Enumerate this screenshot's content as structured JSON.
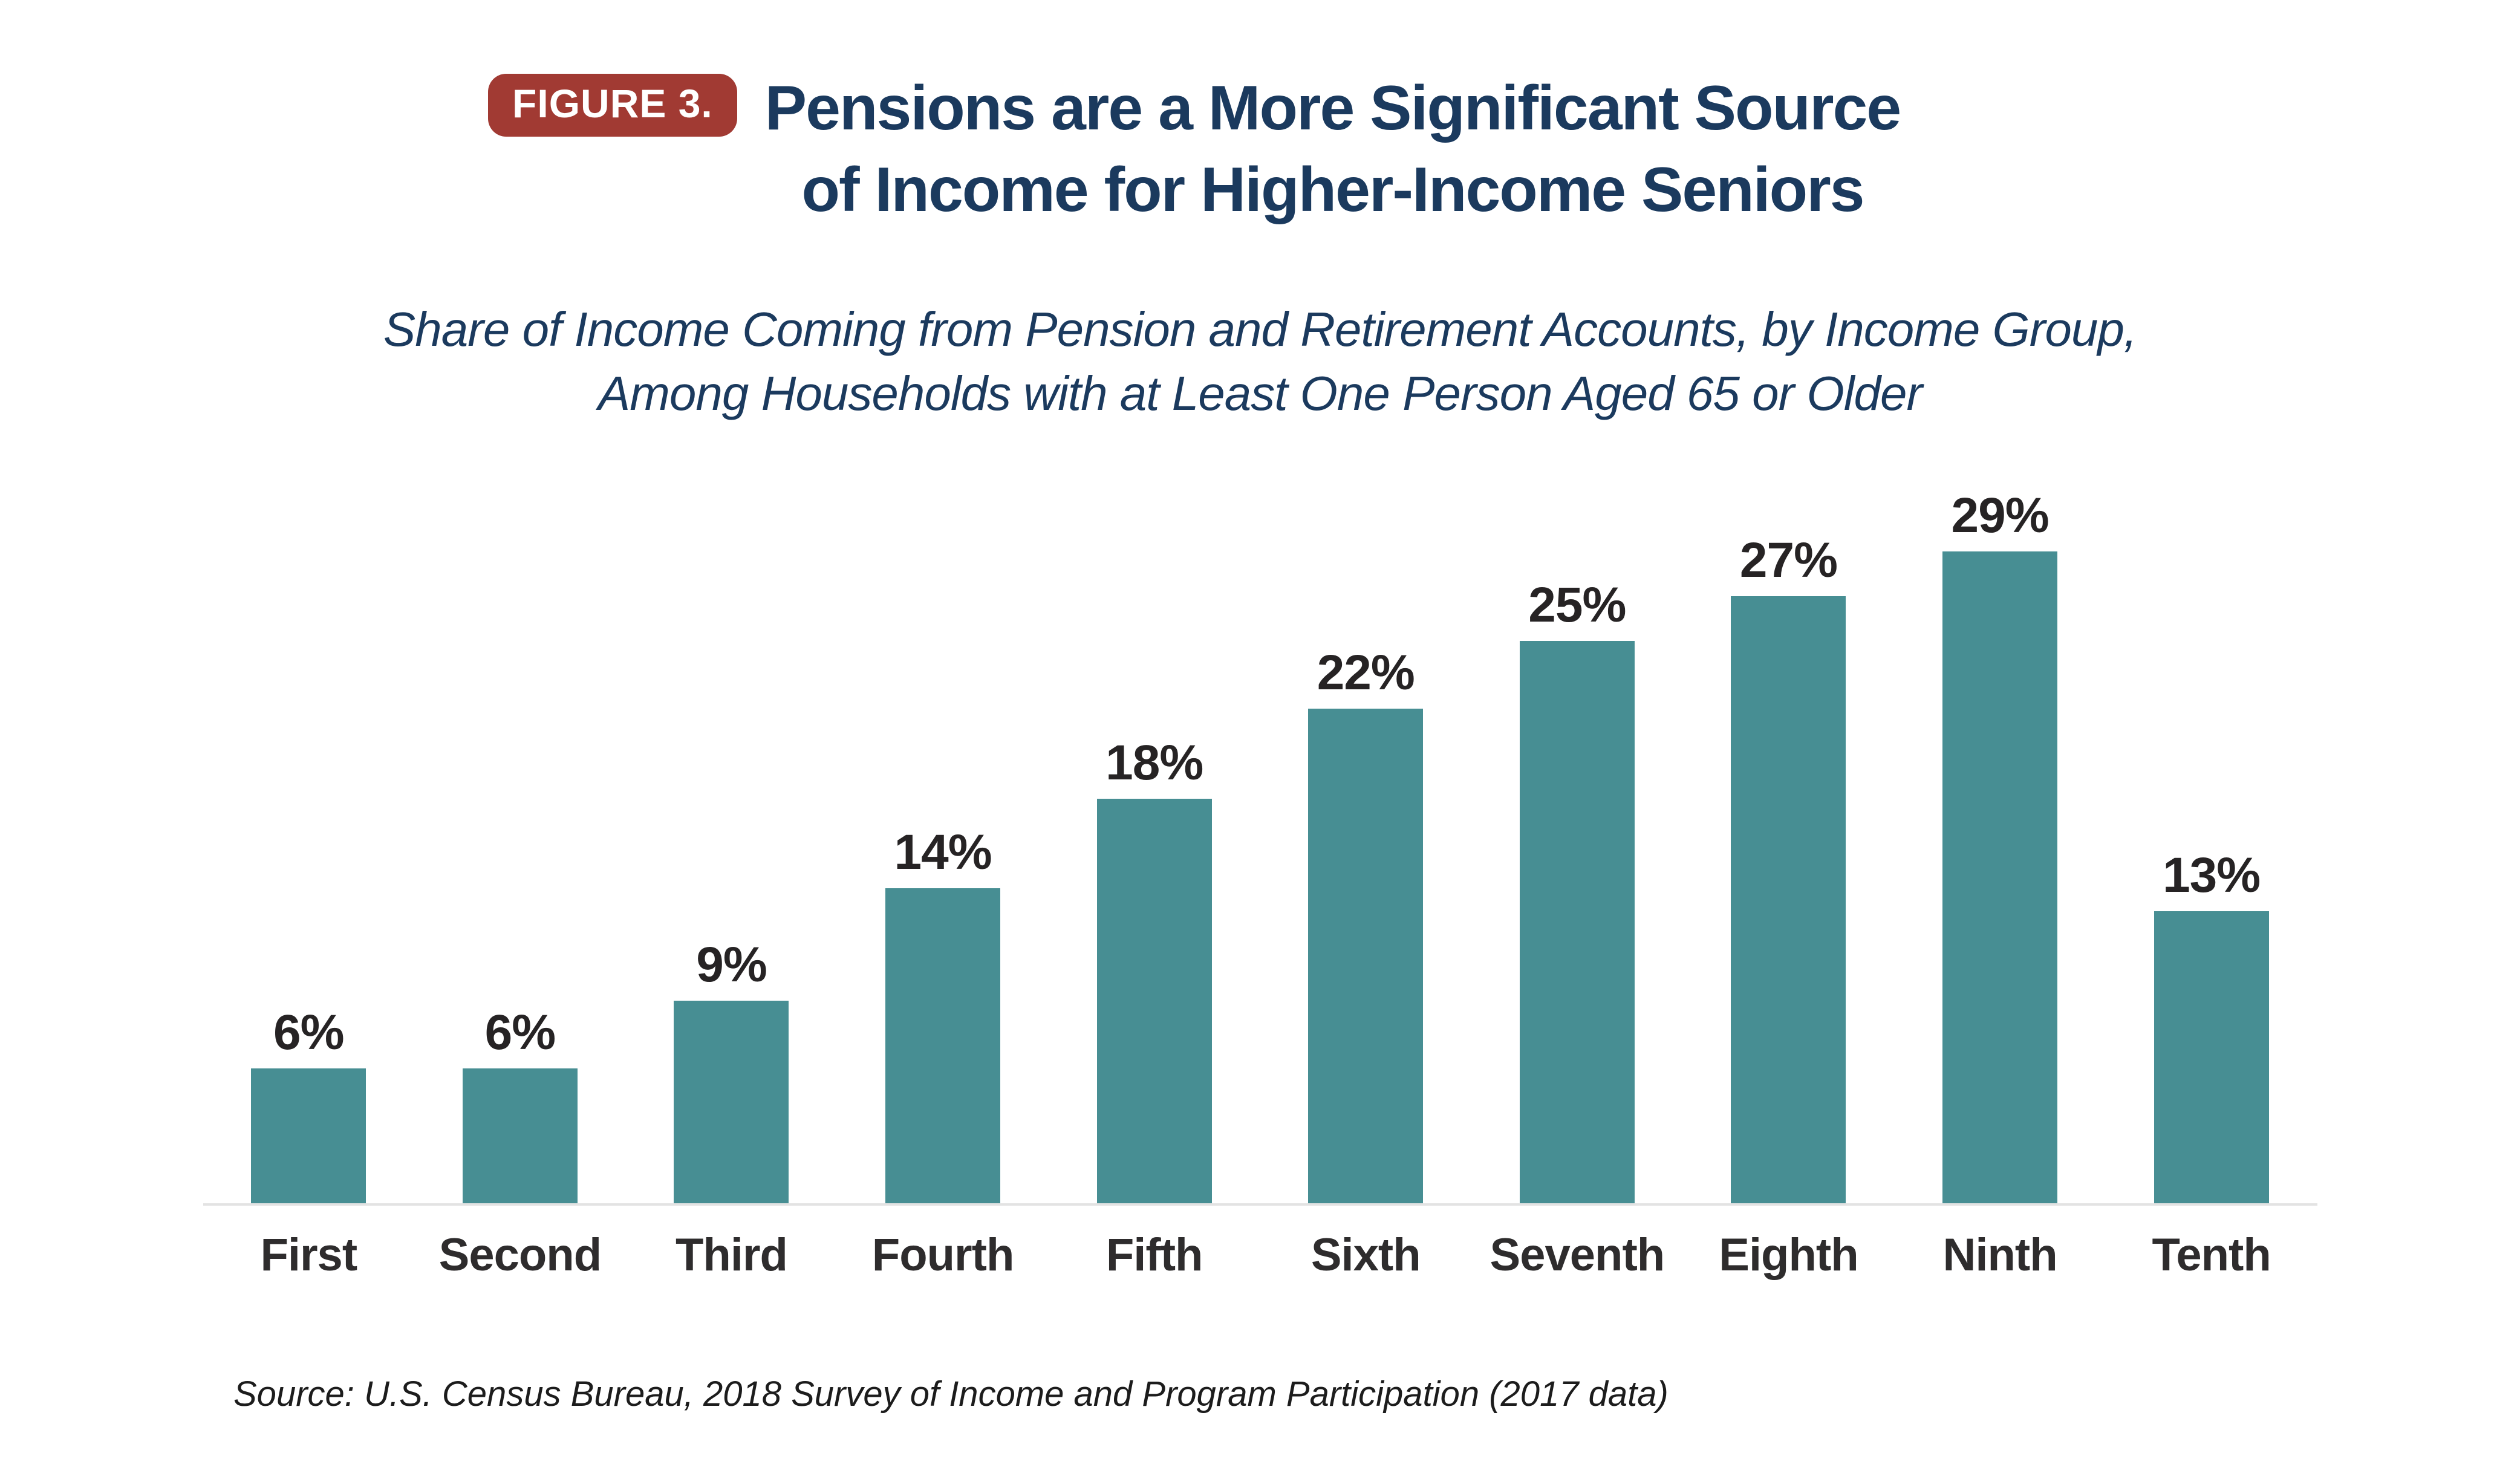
{
  "figure": {
    "badge": "FIGURE 3.",
    "title_line1": "Pensions are a More Significant Source",
    "title_line2": "of Income for Higher-Income Seniors",
    "subtitle_line1": "Share of Income Coming from Pension and Retirement Accounts, by Income Group,",
    "subtitle_line2": "Among Households with at Least One Person Aged 65 or Older",
    "source": "Source: U.S. Census Bureau, 2018 Survey of Income and Program Participation (2017 data)"
  },
  "colors": {
    "bar": "#478e93",
    "title_text": "#1b3a5e",
    "badge_background": "#a13a33",
    "badge_text": "#ffffff",
    "data_label": "#262324",
    "category_label": "#2e2c2d",
    "axis_line": "#e3e3e3",
    "source_text": "#1c1c1c",
    "background": "#ffffff"
  },
  "chart_data": {
    "type": "bar",
    "title": "Pensions are a More Significant Source of Income for Higher-Income Seniors",
    "subtitle": "Share of Income Coming from Pension and Retirement Accounts, by Income Group, Among Households with at Least One Person Aged 65 or Older",
    "categories": [
      "First",
      "Second",
      "Third",
      "Fourth",
      "Fifth",
      "Sixth",
      "Seventh",
      "Eighth",
      "Ninth",
      "Tenth"
    ],
    "values": [
      6,
      6,
      9,
      14,
      18,
      22,
      25,
      27,
      29,
      13
    ],
    "labels": [
      "6%",
      "6%",
      "9%",
      "14%",
      "18%",
      "22%",
      "25%",
      "27%",
      "29%",
      "13%"
    ],
    "xlabel": "",
    "ylabel": "",
    "ylim": [
      0,
      32
    ],
    "grid": false,
    "legend": false,
    "bar_color": "#478e93",
    "data_labels_position": "above-bars",
    "source": "Source: U.S. Census Bureau, 2018 Survey of Income and Program Participation (2017 data)"
  }
}
